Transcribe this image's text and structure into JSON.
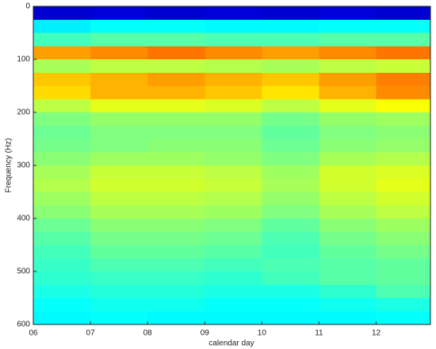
{
  "chart_data": {
    "type": "heatmap",
    "xlabel": "calendar day",
    "ylabel": "Frequency (Hz)",
    "colormap": "jet",
    "clim": [
      0,
      1
    ],
    "xlim": [
      6,
      12.95
    ],
    "ylim": [
      600,
      0
    ],
    "xticks": [
      {
        "value": 6,
        "label": "06"
      },
      {
        "value": 7,
        "label": "07"
      },
      {
        "value": 8,
        "label": "08"
      },
      {
        "value": 9,
        "label": "09"
      },
      {
        "value": 10,
        "label": "10"
      },
      {
        "value": 11,
        "label": "11"
      },
      {
        "value": 12,
        "label": "12"
      }
    ],
    "yticks": [
      0,
      100,
      200,
      300,
      400,
      500,
      600
    ],
    "x_bins": [
      6,
      7,
      8,
      9,
      10,
      11,
      12,
      12.95
    ],
    "y_bins": [
      0,
      25,
      50,
      75,
      100,
      125,
      150,
      175,
      200,
      225,
      250,
      275,
      300,
      325,
      350,
      375,
      400,
      425,
      450,
      475,
      500,
      525,
      550,
      575,
      600
    ],
    "z": [
      [
        0.08,
        0.09,
        0.08,
        0.09,
        0.08,
        0.09,
        0.08
      ],
      [
        0.36,
        0.38,
        0.38,
        0.37,
        0.37,
        0.38,
        0.38
      ],
      [
        0.44,
        0.46,
        0.46,
        0.45,
        0.45,
        0.46,
        0.46
      ],
      [
        0.72,
        0.74,
        0.76,
        0.74,
        0.72,
        0.74,
        0.76
      ],
      [
        0.54,
        0.56,
        0.56,
        0.55,
        0.54,
        0.56,
        0.57
      ],
      [
        0.68,
        0.7,
        0.72,
        0.7,
        0.68,
        0.72,
        0.75
      ],
      [
        0.66,
        0.7,
        0.7,
        0.68,
        0.65,
        0.7,
        0.74
      ],
      [
        0.56,
        0.6,
        0.6,
        0.59,
        0.56,
        0.6,
        0.62
      ],
      [
        0.5,
        0.52,
        0.52,
        0.52,
        0.49,
        0.52,
        0.53
      ],
      [
        0.48,
        0.5,
        0.5,
        0.5,
        0.47,
        0.5,
        0.51
      ],
      [
        0.49,
        0.5,
        0.51,
        0.51,
        0.48,
        0.51,
        0.52
      ],
      [
        0.51,
        0.53,
        0.53,
        0.52,
        0.5,
        0.54,
        0.55
      ],
      [
        0.54,
        0.57,
        0.57,
        0.56,
        0.53,
        0.58,
        0.59
      ],
      [
        0.55,
        0.58,
        0.58,
        0.57,
        0.54,
        0.58,
        0.6
      ],
      [
        0.53,
        0.56,
        0.56,
        0.55,
        0.52,
        0.56,
        0.58
      ],
      [
        0.51,
        0.54,
        0.54,
        0.53,
        0.5,
        0.54,
        0.56
      ],
      [
        0.48,
        0.51,
        0.51,
        0.5,
        0.47,
        0.51,
        0.53
      ],
      [
        0.46,
        0.49,
        0.49,
        0.48,
        0.45,
        0.49,
        0.51
      ],
      [
        0.44,
        0.47,
        0.47,
        0.46,
        0.44,
        0.47,
        0.49
      ],
      [
        0.43,
        0.45,
        0.45,
        0.44,
        0.45,
        0.46,
        0.47
      ],
      [
        0.42,
        0.43,
        0.43,
        0.42,
        0.44,
        0.46,
        0.47
      ],
      [
        0.4,
        0.41,
        0.41,
        0.4,
        0.4,
        0.42,
        0.45
      ],
      [
        0.38,
        0.39,
        0.39,
        0.38,
        0.38,
        0.39,
        0.4
      ],
      [
        0.37,
        0.38,
        0.37,
        0.37,
        0.37,
        0.37,
        0.38
      ]
    ]
  }
}
